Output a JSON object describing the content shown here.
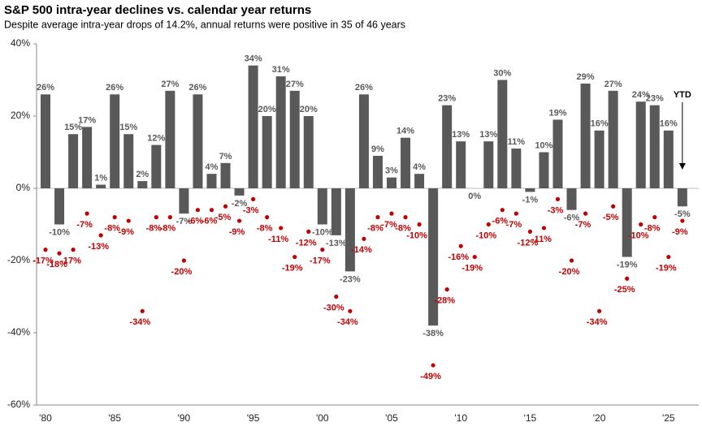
{
  "chart_data": {
    "type": "bar",
    "title": "S&P 500 intra-year declines vs. calendar year returns",
    "subtitle": "Despite average intra-year drops of 14.2%, annual returns were positive in 35 of 46 years",
    "annotation": "YTD",
    "categories": [
      "'80",
      null,
      null,
      null,
      null,
      "'85",
      null,
      null,
      null,
      null,
      "'90",
      null,
      null,
      null,
      null,
      "'95",
      null,
      null,
      null,
      null,
      "'00",
      null,
      null,
      null,
      null,
      "'05",
      null,
      null,
      null,
      null,
      "'10",
      null,
      null,
      null,
      null,
      "'15",
      null,
      null,
      null,
      null,
      "'20",
      null,
      null,
      null,
      null,
      "'25",
      null
    ],
    "ylim": [
      -60,
      40
    ],
    "yticks": [
      {
        "value": -60,
        "label": "-60%"
      },
      {
        "value": -40,
        "label": "-40%"
      },
      {
        "value": -20,
        "label": "-20%"
      },
      {
        "value": 0,
        "label": "0%"
      },
      {
        "value": 20,
        "label": "20%"
      },
      {
        "value": 40,
        "label": "40%"
      }
    ],
    "grid": false,
    "series": [
      {
        "type": "bar",
        "color": "#595959",
        "values": [
          26,
          -10,
          15,
          17,
          1,
          26,
          15,
          2,
          12,
          27,
          -7,
          26,
          4,
          7,
          -2,
          34,
          20,
          31,
          27,
          20,
          -10,
          -13,
          -23,
          26,
          9,
          3,
          14,
          4,
          -38,
          23,
          13,
          0,
          13,
          30,
          11,
          -1,
          10,
          19,
          -6,
          29,
          16,
          27,
          -19,
          24,
          23,
          16,
          -5
        ],
        "value_labels": [
          "26%",
          "-10%",
          "15%",
          "17%",
          "1%",
          "26%",
          "15%",
          "2%",
          "12%",
          "27%",
          "-7%",
          "26%",
          "4%",
          "7%",
          "-2%",
          "34%",
          "20%",
          "31%",
          "27%",
          "20%",
          "-10%",
          "-13%",
          "-23%",
          "26%",
          "9%",
          "3%",
          "14%",
          "4%",
          "-38%",
          "23%",
          "13%",
          "0%",
          "13%",
          "30%",
          "11%",
          "-1%",
          "10%",
          "19%",
          "-6%",
          "29%",
          "16%",
          "27%",
          "-19%",
          "24%",
          "23%",
          "16%",
          "-5%"
        ]
      },
      {
        "type": "scatter",
        "color": "#c00000",
        "values": [
          -17,
          -18,
          -17,
          -7,
          -13,
          -8,
          -9,
          -34,
          -8,
          -8,
          -20,
          -6,
          -6,
          -5,
          -9,
          -3,
          -8,
          -11,
          -19,
          -12,
          -17,
          -30,
          -34,
          -14,
          -8,
          -7,
          -8,
          -10,
          -49,
          -28,
          -16,
          -19,
          -10,
          -6,
          -7,
          -12,
          -11,
          -3,
          -20,
          -7,
          -34,
          -5,
          -25,
          -10,
          -8,
          -19,
          -9
        ],
        "value_labels": [
          "-17%",
          "-18%",
          "-17%",
          "-7%",
          "-13%",
          "-8%",
          "-9%",
          "-34%",
          "-8%",
          "-8%",
          "-20%",
          "-6%",
          "-6%",
          "-5%",
          "-9%",
          "-3%",
          "-8%",
          "-11%",
          "-19%",
          "-12%",
          "-17%",
          "-30%",
          "-34%",
          "-14%",
          "-8%",
          "-7%",
          "-8%",
          "-10%",
          "-49%",
          "-28%",
          "-16%",
          "-19%",
          "-10%",
          "-6%",
          "-7%",
          "-12%",
          "-11%",
          "-3%",
          "-20%",
          "-7%",
          "-34%",
          "-5%",
          "-25%",
          "-10%",
          "-8%",
          "-19%",
          "-9%"
        ]
      }
    ]
  }
}
